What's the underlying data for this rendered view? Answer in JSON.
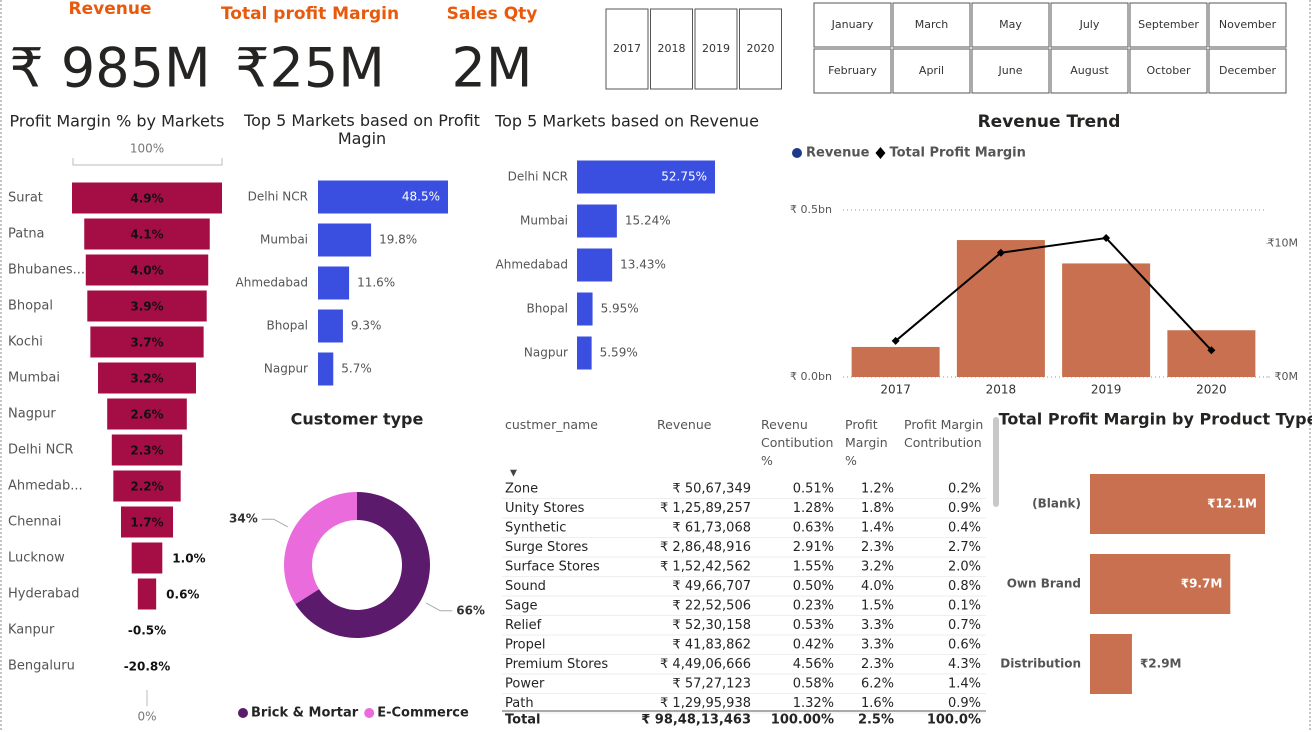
{
  "kpis": [
    {
      "label": "Revenue",
      "value": "₹ 985M"
    },
    {
      "label": "Total profit Margin",
      "value": "₹25M"
    },
    {
      "label": "Sales Qty",
      "value": "2M"
    }
  ],
  "year_slicer": [
    "2017",
    "2018",
    "2019",
    "2020"
  ],
  "month_slicer": [
    "January",
    "March",
    "May",
    "July",
    "September",
    "November",
    "February",
    "April",
    "June",
    "August",
    "October",
    "December"
  ],
  "chart_data": [
    {
      "type": "funnel",
      "title": "Profit Margin % by Markets",
      "categories": [
        "Surat",
        "Patna",
        "Bhubanes...",
        "Bhopal",
        "Kochi",
        "Mumbai",
        "Nagpur",
        "Delhi NCR",
        "Ahmedab...",
        "Chennai",
        "Lucknow",
        "Hyderabad",
        "Kanpur",
        "Bengaluru"
      ],
      "values": [
        4.9,
        4.1,
        4.0,
        3.9,
        3.7,
        3.2,
        2.6,
        2.3,
        2.2,
        1.7,
        1.0,
        0.6,
        -0.5,
        -20.8
      ],
      "value_labels": [
        "4.9%",
        "4.1%",
        "4.0%",
        "3.9%",
        "3.7%",
        "3.2%",
        "2.6%",
        "2.3%",
        "2.2%",
        "1.7%",
        "1.0%",
        "0.6%",
        "-0.5%",
        "-20.8%"
      ],
      "color": "#a50d45",
      "top_label": "100%",
      "bottom_label": "0%"
    },
    {
      "type": "hbar",
      "title": "Top 5 Markets based on Profit Magin",
      "categories": [
        "Delhi NCR",
        "Mumbai",
        "Ahmedabad",
        "Bhopal",
        "Nagpur"
      ],
      "values": [
        48.5,
        19.8,
        11.6,
        9.3,
        5.7
      ],
      "value_labels": [
        "48.5%",
        "19.8%",
        "11.6%",
        "9.3%",
        "5.7%"
      ],
      "color": "#3a4fe0"
    },
    {
      "type": "hbar",
      "title": "Top 5 Markets based on Revenue",
      "categories": [
        "Delhi NCR",
        "Mumbai",
        "Ahmedabad",
        "Bhopal",
        "Nagpur"
      ],
      "values": [
        52.75,
        15.24,
        13.43,
        5.95,
        5.59
      ],
      "value_labels": [
        "52.75%",
        "15.24%",
        "13.43%",
        "5.95%",
        "5.59%"
      ],
      "color": "#3a4fe0"
    },
    {
      "type": "combo",
      "title": "Revenue Trend",
      "categories": [
        "2017",
        "2018",
        "2019",
        "2020"
      ],
      "series": [
        {
          "name": "Revenue",
          "type": "bar",
          "color": "#c8704f",
          "legend_color": "#1b3a8c",
          "values": [
            0.09,
            0.41,
            0.34,
            0.14
          ]
        },
        {
          "name": "Total Profit Margin",
          "type": "line",
          "axis": "y2",
          "color": "#000000",
          "values": [
            2.7,
            9.3,
            10.4,
            2.0
          ]
        }
      ],
      "ylim": [
        0,
        0.5
      ],
      "yticks": [
        {
          "value": 0,
          "label": "₹ 0.0bn"
        },
        {
          "value": 0.5,
          "label": "₹ 0.5bn"
        }
      ],
      "y2lim": [
        0,
        12.5
      ],
      "y2ticks": [
        {
          "value": 0,
          "label": "₹0M"
        },
        {
          "value": 10,
          "label": "₹10M"
        }
      ],
      "legend": "top-left"
    },
    {
      "type": "donut",
      "title": "Customer type",
      "categories": [
        "Brick & Mortar",
        "E-Commerce"
      ],
      "values": [
        66,
        34
      ],
      "value_labels": [
        "66%",
        "34%"
      ],
      "colors": [
        "#5b1a6b",
        "#ea6bdc"
      ]
    },
    {
      "type": "hbar",
      "title": "Total Profit Margin by Product Type",
      "categories": [
        "(Blank)",
        "Own Brand",
        "Distribution"
      ],
      "values": [
        12.1,
        9.7,
        2.9
      ],
      "value_labels": [
        "₹12.1M",
        "₹9.7M",
        "₹2.9M"
      ],
      "color": "#c8704f"
    }
  ],
  "table": {
    "columns": [
      "custmer_name",
      "Revenue",
      "Revenu Contibution %",
      "Profit Margin %",
      "Profit Margin Contribution"
    ],
    "rows": [
      [
        "Zone",
        "₹ 50,67,349",
        "0.51%",
        "1.2%",
        "0.2%"
      ],
      [
        "Unity Stores",
        "₹ 1,25,89,257",
        "1.28%",
        "1.8%",
        "0.9%"
      ],
      [
        "Synthetic",
        "₹ 61,73,068",
        "0.63%",
        "1.4%",
        "0.4%"
      ],
      [
        "Surge Stores",
        "₹ 2,86,48,916",
        "2.91%",
        "2.3%",
        "2.7%"
      ],
      [
        "Surface Stores",
        "₹ 1,52,42,562",
        "1.55%",
        "3.2%",
        "2.0%"
      ],
      [
        "Sound",
        "₹ 49,66,707",
        "0.50%",
        "4.0%",
        "0.8%"
      ],
      [
        "Sage",
        "₹ 22,52,506",
        "0.23%",
        "1.5%",
        "0.1%"
      ],
      [
        "Relief",
        "₹ 52,30,158",
        "0.53%",
        "3.3%",
        "0.7%"
      ],
      [
        "Propel",
        "₹ 41,83,862",
        "0.42%",
        "3.3%",
        "0.6%"
      ],
      [
        "Premium Stores",
        "₹ 4,49,06,666",
        "4.56%",
        "2.3%",
        "4.3%"
      ],
      [
        "Power",
        "₹ 57,27,123",
        "0.58%",
        "6.2%",
        "1.4%"
      ],
      [
        "Path",
        "₹ 1,29,95,938",
        "1.32%",
        "1.6%",
        "0.9%"
      ]
    ],
    "total": [
      "Total",
      "₹ 98,48,13,463",
      "100.00%",
      "2.5%",
      "100.0%"
    ]
  }
}
